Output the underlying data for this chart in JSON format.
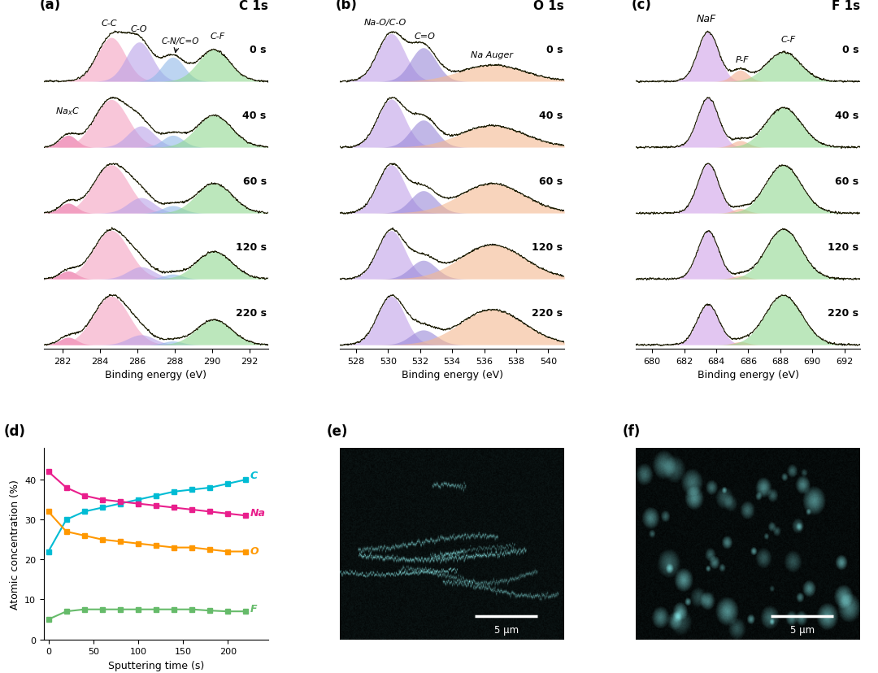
{
  "panel_labels": [
    "(a)",
    "(b)",
    "(c)",
    "(d)",
    "(e)",
    "(f)"
  ],
  "titles": [
    "C 1s",
    "O 1s",
    "F 1s"
  ],
  "times": [
    "0 s",
    "40 s",
    "60 s",
    "120 s",
    "220 s"
  ],
  "panel_a_xlim": [
    281,
    293
  ],
  "panel_b_xlim": [
    527,
    541
  ],
  "panel_c_xlim": [
    679,
    693
  ],
  "panel_a_xticks": [
    282,
    284,
    286,
    288,
    290,
    292
  ],
  "panel_b_xticks": [
    528,
    530,
    532,
    534,
    536,
    538,
    540
  ],
  "panel_c_xticks": [
    680,
    682,
    684,
    686,
    688,
    690,
    692
  ],
  "xlabel": "Binding energy (eV)",
  "panel_d_xlabel": "Sputtering time (s)",
  "panel_d_ylabel": "Atomic concentration (%)",
  "sput_times": [
    0,
    20,
    40,
    60,
    80,
    100,
    120,
    140,
    160,
    180,
    200,
    220
  ],
  "C_vals": [
    22,
    30,
    32,
    33,
    34,
    35,
    36,
    37,
    37.5,
    38,
    39,
    40
  ],
  "Na_vals": [
    42,
    38,
    36,
    35,
    34.5,
    34,
    33.5,
    33,
    32.5,
    32,
    31.5,
    31
  ],
  "O_vals": [
    32,
    27,
    26,
    25,
    24.5,
    24,
    23.5,
    23,
    23,
    22.5,
    22,
    22
  ],
  "F_vals": [
    5,
    7,
    7.5,
    7.5,
    7.5,
    7.5,
    7.5,
    7.5,
    7.5,
    7.2,
    7,
    7
  ],
  "colors": {
    "pink": "#f4a7c0",
    "violet": "#c3a0e0",
    "blue_violet": "#9b85d0",
    "light_blue": "#90c4e8",
    "green": "#a8d8a0",
    "orange": "#f4a87c",
    "hot_pink": "#e8609a",
    "curve": "#1a1a00",
    "cyan": "#00bcd4",
    "magenta": "#e91e8c",
    "orange_line": "#ff9800",
    "green_line": "#66bb6a"
  }
}
